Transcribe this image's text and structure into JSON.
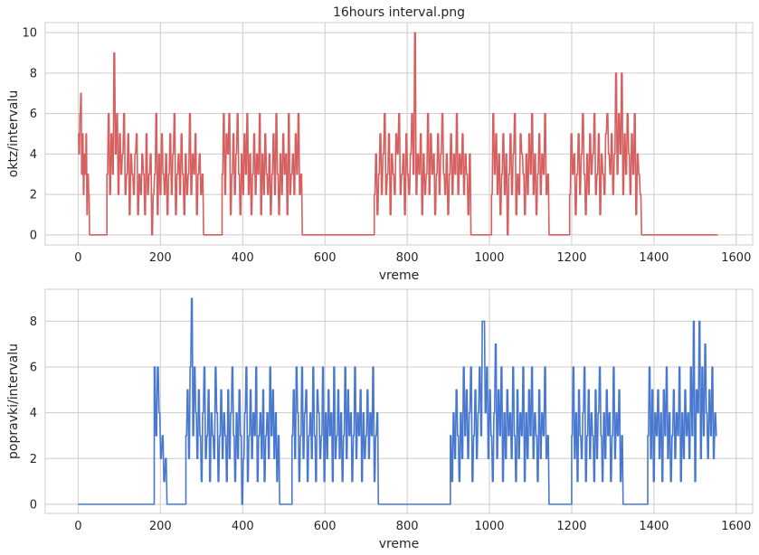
{
  "colors": {
    "red_series": "#d65f5f",
    "blue_series": "#4878cf",
    "grid": "#cccccc",
    "text": "#262626"
  },
  "chart_data": [
    {
      "type": "line",
      "title": "16hours interval.png",
      "xlabel": "vreme",
      "ylabel": "oktz/intervalu",
      "xlim": [
        -80,
        1640
      ],
      "ylim": [
        -0.5,
        10.5
      ],
      "xticks": [
        0,
        200,
        400,
        600,
        800,
        1000,
        1200,
        1400,
        1600
      ],
      "yticks": [
        0,
        2,
        4,
        6,
        8,
        10
      ],
      "grid": true,
      "color": "#d65f5f",
      "segments": [
        {
          "x_start": 0,
          "x_end": 30,
          "values": [
            5,
            4,
            6,
            7,
            3,
            5,
            2,
            4,
            3,
            5,
            1,
            3,
            2,
            0
          ]
        },
        {
          "x_start": 30,
          "x_end": 70,
          "flat": 0
        },
        {
          "x_start": 70,
          "x_end": 305,
          "values": [
            3,
            6,
            2,
            5,
            3,
            9,
            4,
            6,
            2,
            5,
            3,
            4,
            6,
            2,
            3,
            5,
            1,
            4,
            3,
            2,
            4,
            5,
            1,
            3,
            2,
            4,
            3,
            1,
            5,
            2,
            3,
            4,
            0,
            2,
            3,
            6,
            1,
            4,
            2,
            5,
            3,
            2,
            4,
            1,
            3,
            5,
            2,
            4,
            6,
            1,
            3,
            4,
            2,
            5,
            3,
            1,
            4,
            2,
            3,
            6,
            2,
            4,
            3,
            5,
            1,
            3,
            4,
            2,
            3
          ]
        },
        {
          "x_start": 305,
          "x_end": 350,
          "flat": 0
        },
        {
          "x_start": 350,
          "x_end": 545,
          "values": [
            3,
            6,
            2,
            5,
            4,
            6,
            1,
            3,
            5,
            2,
            4,
            6,
            3,
            1,
            4,
            2,
            5,
            3,
            6,
            2,
            4,
            1,
            3,
            5,
            2,
            4,
            3,
            6,
            1,
            4,
            2,
            5,
            3,
            2,
            4,
            1,
            3,
            5,
            2,
            6,
            3,
            1,
            4,
            2,
            5,
            3,
            4,
            1,
            6,
            2,
            3,
            4,
            2,
            5,
            3,
            6,
            2,
            3
          ]
        },
        {
          "x_start": 545,
          "x_end": 720,
          "flat": 0
        },
        {
          "x_start": 720,
          "x_end": 955,
          "values": [
            2,
            4,
            1,
            3,
            5,
            2,
            4,
            6,
            2,
            3,
            5,
            1,
            4,
            3,
            2,
            5,
            4,
            6,
            2,
            3,
            4,
            1,
            5,
            3,
            2,
            4,
            6,
            3,
            10,
            2,
            4,
            3,
            5,
            1,
            4,
            2,
            3,
            6,
            2,
            5,
            3,
            4,
            1,
            3,
            5,
            2,
            4,
            6,
            3,
            2,
            4,
            1,
            3,
            5,
            2,
            4,
            3,
            6,
            2,
            4,
            3,
            5,
            2,
            4,
            3,
            1,
            4
          ]
        },
        {
          "x_start": 955,
          "x_end": 1005,
          "flat": 0
        },
        {
          "x_start": 1005,
          "x_end": 1145,
          "values": [
            2,
            6,
            3,
            5,
            2,
            4,
            1,
            3,
            5,
            2,
            4,
            0,
            3,
            5,
            2,
            4,
            6,
            1,
            3,
            2,
            5,
            4,
            3,
            1,
            4,
            2,
            5,
            3,
            6,
            2,
            4,
            1,
            3,
            5,
            2,
            4,
            3,
            6,
            2,
            3
          ]
        },
        {
          "x_start": 1145,
          "x_end": 1195,
          "flat": 0
        },
        {
          "x_start": 1195,
          "x_end": 1370,
          "values": [
            2,
            5,
            3,
            4,
            1,
            3,
            5,
            2,
            4,
            6,
            3,
            1,
            4,
            2,
            5,
            3,
            4,
            6,
            2,
            3,
            5,
            1,
            4,
            3,
            2,
            5,
            6,
            4,
            3,
            5,
            2,
            4,
            8,
            3,
            6,
            4,
            8,
            2,
            5,
            3,
            6,
            4,
            2,
            5,
            3,
            6,
            1,
            4,
            3,
            2
          ]
        },
        {
          "x_start": 1370,
          "x_end": 1555,
          "flat": 0
        }
      ]
    },
    {
      "type": "line",
      "title": "",
      "xlabel": "vreme",
      "ylabel": "popravki/intervalu",
      "xlim": [
        -80,
        1640
      ],
      "ylim": [
        -0.4,
        9.4
      ],
      "xticks": [
        0,
        200,
        400,
        600,
        800,
        1000,
        1200,
        1400,
        1600
      ],
      "yticks": [
        0,
        2,
        4,
        6,
        8
      ],
      "grid": true,
      "color": "#4878cf",
      "segments": [
        {
          "x_start": 0,
          "x_end": 185,
          "flat": 0
        },
        {
          "x_start": 185,
          "x_end": 220,
          "values": [
            6,
            3,
            6,
            4,
            2,
            3,
            1,
            2,
            0
          ]
        },
        {
          "x_start": 220,
          "x_end": 262,
          "flat": 0
        },
        {
          "x_start": 262,
          "x_end": 490,
          "values": [
            3,
            5,
            2,
            6,
            9,
            3,
            6,
            4,
            2,
            5,
            3,
            1,
            4,
            6,
            2,
            3,
            5,
            1,
            4,
            3,
            2,
            6,
            4,
            1,
            3,
            5,
            2,
            4,
            3,
            1,
            5,
            2,
            4,
            6,
            3,
            1,
            4,
            2,
            5,
            3,
            0,
            2,
            4,
            6,
            1,
            3,
            5,
            2,
            4,
            3,
            6,
            1,
            3,
            4,
            2,
            5,
            1,
            3,
            4,
            2,
            6,
            3,
            5,
            2,
            4,
            1,
            3
          ]
        },
        {
          "x_start": 490,
          "x_end": 520,
          "flat": 0
        },
        {
          "x_start": 520,
          "x_end": 730,
          "values": [
            3,
            5,
            2,
            6,
            4,
            1,
            3,
            6,
            2,
            4,
            5,
            1,
            3,
            4,
            2,
            6,
            3,
            1,
            5,
            4,
            2,
            3,
            6,
            1,
            4,
            2,
            5,
            3,
            4,
            1,
            6,
            2,
            3,
            5,
            2,
            4,
            1,
            3,
            6,
            2,
            5,
            3,
            4,
            1,
            3,
            6,
            2,
            4,
            3,
            5,
            1,
            4,
            2,
            3,
            5,
            2,
            4,
            3,
            6,
            1,
            3,
            4
          ]
        },
        {
          "x_start": 730,
          "x_end": 905,
          "flat": 0
        },
        {
          "x_start": 905,
          "x_end": 1145,
          "values": [
            3,
            1,
            4,
            2,
            5,
            3,
            1,
            4,
            2,
            6,
            3,
            5,
            2,
            4,
            6,
            1,
            3,
            5,
            2,
            4,
            6,
            3,
            8,
            8,
            4,
            6,
            2,
            5,
            3,
            1,
            4,
            7,
            2,
            5,
            3,
            6,
            1,
            4,
            2,
            5,
            3,
            4,
            2,
            6,
            3,
            1,
            5,
            2,
            4,
            3,
            6,
            1,
            4,
            2,
            5,
            3,
            6,
            2,
            4,
            3,
            1,
            5,
            2,
            4,
            3,
            6,
            2,
            3
          ]
        },
        {
          "x_start": 1145,
          "x_end": 1200,
          "flat": 0
        },
        {
          "x_start": 1200,
          "x_end": 1325,
          "values": [
            3,
            6,
            2,
            4,
            1,
            5,
            3,
            2,
            4,
            6,
            1,
            3,
            5,
            2,
            4,
            3,
            1,
            5,
            2,
            4,
            6,
            3,
            1,
            4,
            2,
            5,
            3,
            4,
            1,
            3,
            6,
            2,
            4,
            3,
            5,
            1,
            3
          ]
        },
        {
          "x_start": 1325,
          "x_end": 1385,
          "flat": 0
        },
        {
          "x_start": 1385,
          "x_end": 1555,
          "values": [
            3,
            6,
            2,
            5,
            1,
            4,
            3,
            5,
            2,
            4,
            1,
            5,
            3,
            6,
            2,
            4,
            1,
            3,
            5,
            2,
            4,
            3,
            6,
            1,
            4,
            2,
            5,
            3,
            4,
            2,
            6,
            3,
            8,
            1,
            5,
            4,
            8,
            2,
            6,
            3,
            7,
            4,
            2,
            5,
            3,
            6,
            2,
            4,
            3
          ]
        }
      ]
    }
  ]
}
